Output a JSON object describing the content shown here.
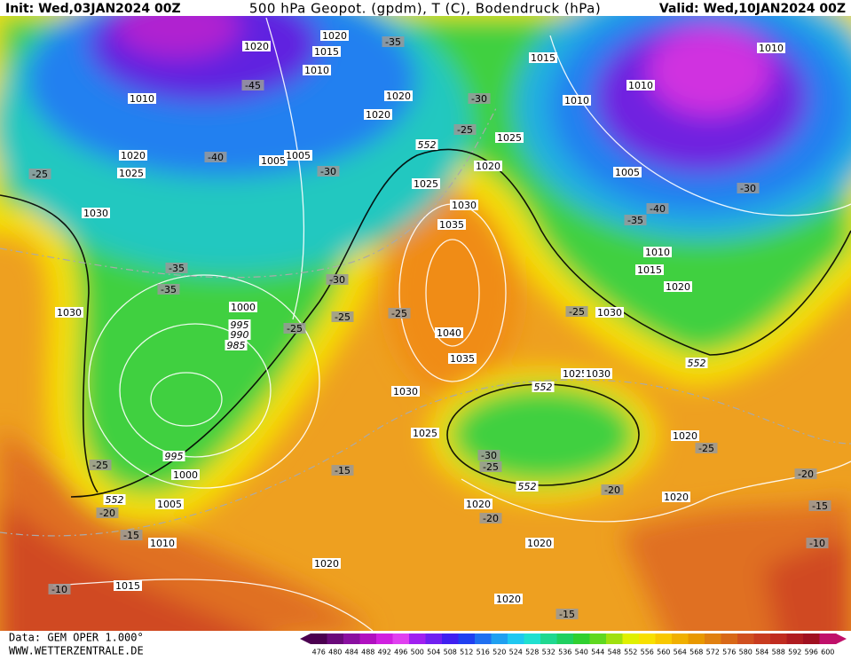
{
  "header": {
    "init": "Init: Wed,03JAN2024 00Z",
    "title": "500 hPa Geopot. (gpdm), T (C), Bodendruck (hPa)",
    "valid": "Valid: Wed,10JAN2024 00Z"
  },
  "footer": {
    "data": "Data: GEM OPER 1.000°",
    "site": "WWW.WETTERZENTRALE.DE"
  },
  "colorbar": {
    "levels": [
      "476",
      "480",
      "484",
      "488",
      "492",
      "496",
      "500",
      "504",
      "508",
      "512",
      "516",
      "520",
      "524",
      "528",
      "532",
      "536",
      "540",
      "544",
      "548",
      "552",
      "556",
      "560",
      "564",
      "568",
      "572",
      "576",
      "580",
      "584",
      "588",
      "592",
      "596",
      "600"
    ],
    "colors": [
      "#4b0050",
      "#6a0a7a",
      "#8a10a0",
      "#b010c0",
      "#d020e0",
      "#e040f0",
      "#a020f0",
      "#7020f0",
      "#4020f0",
      "#2040f0",
      "#2070f0",
      "#20a0f0",
      "#20c8f0",
      "#20e0d0",
      "#20d890",
      "#20d060",
      "#30d030",
      "#60d820",
      "#a0e010",
      "#e0f000",
      "#f8e000",
      "#f8c800",
      "#f0b000",
      "#e89800",
      "#e08010",
      "#d86818",
      "#d05020",
      "#c83c20",
      "#c02c20",
      "#b01c20",
      "#a01020",
      "#c0106a"
    ]
  },
  "map": {
    "labels": [
      "1020",
      "1020",
      "1015",
      "1010",
      "-35",
      "-45",
      "1010",
      "1020",
      "-30",
      "1020",
      "-25",
      "1025",
      "552",
      "1020",
      "-40",
      "1005",
      "1005",
      "-30",
      "1020",
      "1025",
      "-25",
      "1025",
      "1030",
      "1030",
      "1035",
      "-35",
      "-35",
      "-30",
      "1030",
      "1000",
      "995",
      "990",
      "985",
      "-25",
      "-25",
      "-25",
      "1040",
      "1035",
      "1030",
      "1025",
      "-25",
      "995",
      "1000",
      "552",
      "1005",
      "-20",
      "-15",
      "1010",
      "-15",
      "-30",
      "-25",
      "552",
      "1020",
      "-20",
      "1020",
      "1020",
      "1015",
      "-10",
      "1020",
      "-15",
      "1015",
      "1010",
      "1010",
      "1010",
      "1005",
      "-30",
      "-40",
      "-35",
      "1010",
      "1015",
      "1020",
      "-25",
      "1030",
      "552",
      "1025",
      "1030",
      "552",
      "1020",
      "-25",
      "-20",
      "1020",
      "-20",
      "-15",
      "-10"
    ]
  }
}
